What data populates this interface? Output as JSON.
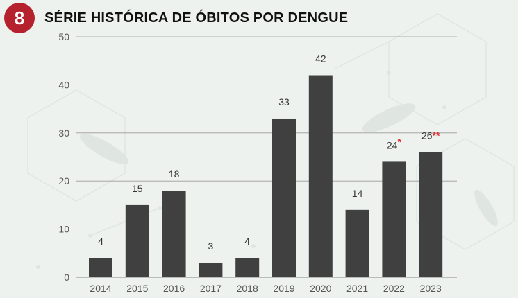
{
  "header": {
    "badge": "8",
    "title": "SÉRIE HISTÓRICA DE ÓBITOS POR DENGUE"
  },
  "colors": {
    "badge": "#b5212d",
    "bar": "#404040",
    "grid": "#9a9a9a",
    "mark": "#e0242b",
    "background": "#eef2ef"
  },
  "chart_data": {
    "type": "bar",
    "categories": [
      "2014",
      "2015",
      "2016",
      "2017",
      "2018",
      "2019",
      "2020",
      "2021",
      "2022",
      "2023"
    ],
    "values": [
      4,
      15,
      18,
      3,
      4,
      33,
      42,
      14,
      24,
      26
    ],
    "data_labels": [
      "4",
      "15",
      "18",
      "3",
      "4",
      "33",
      "42",
      "14",
      "24",
      "26"
    ],
    "label_marks": [
      "",
      "",
      "",
      "",
      "",
      "",
      "",
      "",
      "*",
      "**"
    ],
    "title": "SÉRIE HISTÓRICA DE ÓBITOS POR DENGUE",
    "xlabel": "",
    "ylabel": "",
    "ylim": [
      0,
      50
    ],
    "yticks": [
      0,
      10,
      20,
      30,
      40,
      50
    ],
    "grid": true,
    "legend": "none"
  }
}
